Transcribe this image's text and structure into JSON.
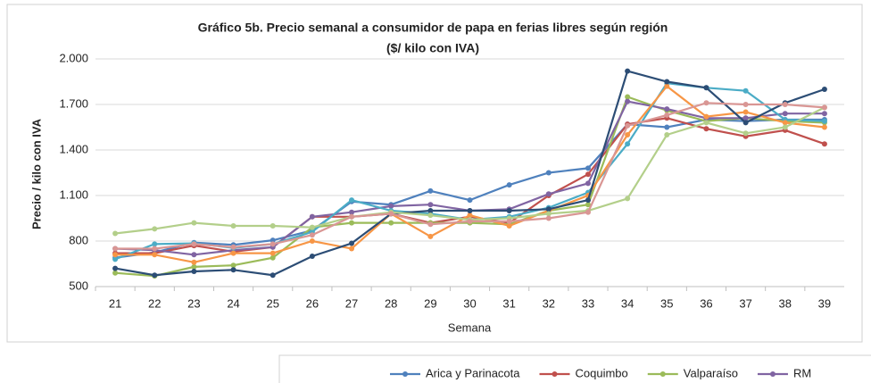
{
  "chart_data": {
    "type": "line",
    "title": "Gráfico 5b. Precio semanal a consumidor de papa en ferias libres según región",
    "subtitle": "($/ kilo con IVA)",
    "x_label": "Semana",
    "y_label": "Precio / kilo con IVA",
    "categories": [
      "21",
      "22",
      "23",
      "24",
      "25",
      "26",
      "27",
      "28",
      "29",
      "30",
      "31",
      "32",
      "33",
      "34",
      "35",
      "36",
      "37",
      "38",
      "39"
    ],
    "ylim": [
      500,
      2000
    ],
    "yticks": [
      {
        "value": 500,
        "label": "500"
      },
      {
        "value": 800,
        "label": "800"
      },
      {
        "value": 1100,
        "label": "1.100"
      },
      {
        "value": 1400,
        "label": "1.400"
      },
      {
        "value": 1700,
        "label": "1.700"
      },
      {
        "value": 2000,
        "label": "2.000"
      }
    ],
    "grid": true,
    "legend": "bottom",
    "series": [
      {
        "name": "Arica y Parinacota",
        "color": "#4f81bd",
        "values": [
          690,
          725,
          790,
          775,
          805,
          870,
          1060,
          1040,
          1130,
          1070,
          1170,
          1250,
          1280,
          1570,
          1550,
          1600,
          1590,
          1600,
          1600
        ]
      },
      {
        "name": "Coquimbo",
        "color": "#c0504d",
        "values": [
          720,
          720,
          770,
          730,
          760,
          960,
          960,
          980,
          920,
          960,
          920,
          1100,
          1240,
          1570,
          1610,
          1540,
          1490,
          1530,
          1440
        ]
      },
      {
        "name": "Valparaíso",
        "color": "#9bbb59",
        "values": [
          590,
          570,
          630,
          640,
          690,
          890,
          920,
          920,
          920,
          920,
          910,
          1000,
          1040,
          1750,
          1660,
          1590,
          1610,
          1590,
          1580
        ]
      },
      {
        "name": "RM",
        "color": "#8064a2",
        "values": [
          750,
          740,
          710,
          740,
          760,
          960,
          990,
          1030,
          1040,
          1000,
          1010,
          1110,
          1180,
          1720,
          1670,
          1610,
          1610,
          1640,
          1640
        ]
      },
      {
        "color": "#4bacc6",
        "values": [
          680,
          780,
          785,
          755,
          780,
          860,
          1070,
          1000,
          980,
          940,
          960,
          1020,
          1120,
          1440,
          1840,
          1810,
          1790,
          1600,
          1590
        ]
      },
      {
        "color": "#f79646",
        "values": [
          710,
          710,
          660,
          720,
          720,
          800,
          750,
          980,
          830,
          970,
          900,
          1000,
          1100,
          1500,
          1820,
          1620,
          1650,
          1580,
          1550
        ]
      },
      {
        "color": "#2c4d75",
        "values": [
          620,
          575,
          600,
          610,
          575,
          700,
          785,
          980,
          1000,
          1000,
          1000,
          1010,
          1070,
          1920,
          1850,
          1810,
          1580,
          1710,
          1800
        ]
      },
      {
        "color": "#b3cf8a",
        "values": [
          850,
          880,
          920,
          900,
          900,
          890,
          960,
          990,
          970,
          940,
          950,
          980,
          1000,
          1080,
          1500,
          1580,
          1510,
          1550,
          1680
        ]
      },
      {
        "color": "#d99694",
        "values": [
          750,
          750,
          780,
          760,
          780,
          840,
          960,
          980,
          910,
          930,
          930,
          950,
          990,
          1560,
          1630,
          1710,
          1700,
          1700,
          1680
        ]
      }
    ]
  }
}
